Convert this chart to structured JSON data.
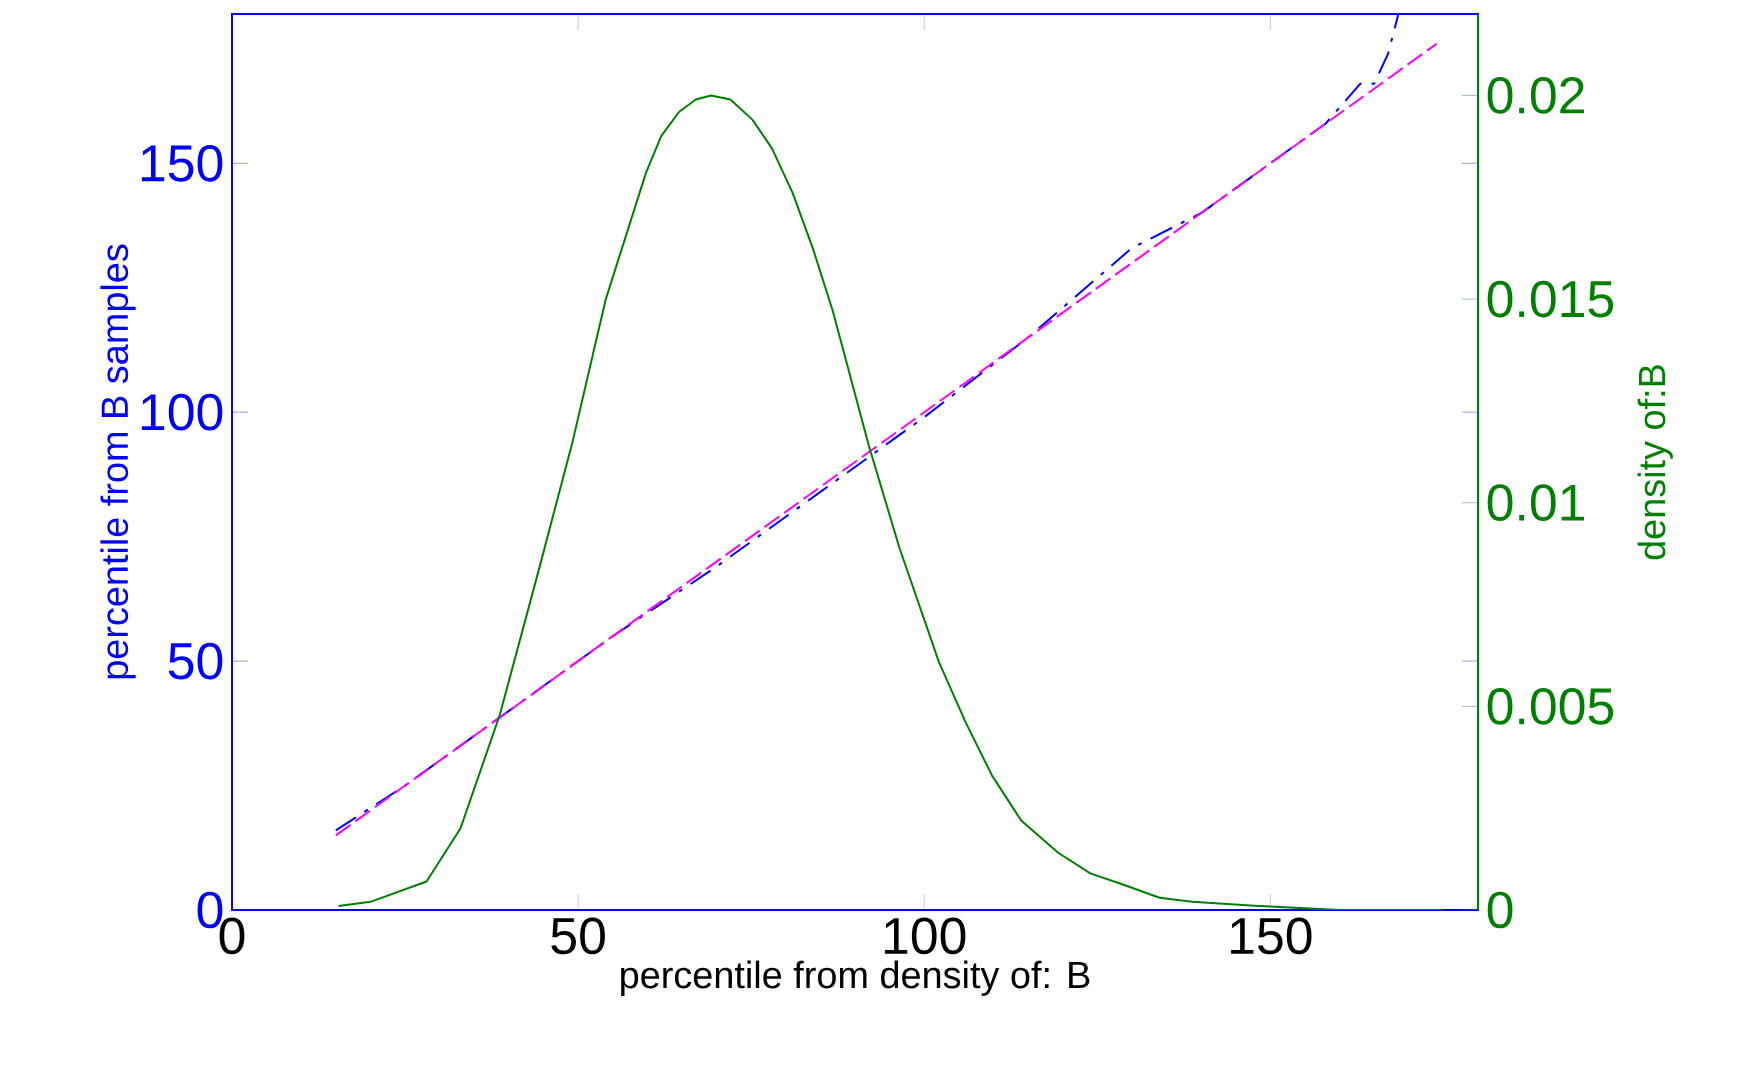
{
  "chart_data": {
    "type": "line",
    "xlabel": "percentile from density of: B",
    "ylabel": "percentile from B samples",
    "y2label": "density of:B",
    "xlim": [
      0,
      180
    ],
    "xticks": [
      0,
      50,
      100,
      150
    ],
    "ylim": [
      0,
      180
    ],
    "yticks": [
      0,
      50,
      100,
      150
    ],
    "y2lim": [
      0,
      0.022
    ],
    "y2ticks": [
      0,
      0.005,
      0.01,
      0.015,
      0.02
    ],
    "grid": false,
    "marker": "none",
    "series": [
      {
        "color": "#0000ff",
        "line_style": "dashdot",
        "x": [
          15,
          25,
          40,
          55,
          70,
          85,
          100,
          115,
          130,
          140,
          150,
          158,
          163,
          165,
          167,
          168.5
        ],
        "values": [
          16,
          25,
          40,
          55,
          69,
          84,
          99,
          115,
          133,
          140,
          150,
          158,
          166,
          166,
          172,
          180
        ]
      },
      {
        "color": "#ff00ff",
        "line_style": "dashed",
        "x": [
          15,
          174
        ],
        "values": [
          15,
          174
        ]
      },
      {
        "color": "#008000",
        "line_style": "solid",
        "axis": "y2",
        "x": [
          15.4,
          20,
          28.1,
          33,
          38.7,
          44.4,
          49.2,
          54.0,
          59.8,
          62,
          64.6,
          67,
          69.2,
          72,
          75.2,
          78,
          81.0,
          84,
          86.8,
          92.0,
          96.4,
          102.1,
          106,
          109.8,
          114,
          119.4,
          124,
          129.1,
          134,
          138.7,
          148.3,
          160,
          175
        ],
        "values": [
          0.0001,
          0.0002,
          0.0007,
          0.002,
          0.0048,
          0.0084,
          0.0115,
          0.015,
          0.0181,
          0.019,
          0.0196,
          0.0199,
          0.02,
          0.0199,
          0.0194,
          0.0187,
          0.0176,
          0.0162,
          0.0147,
          0.0114,
          0.0089,
          0.0061,
          0.0046,
          0.0033,
          0.0022,
          0.0014,
          0.0009,
          0.0006,
          0.0003,
          0.0002,
          0.0001,
          0,
          0
        ]
      }
    ]
  }
}
